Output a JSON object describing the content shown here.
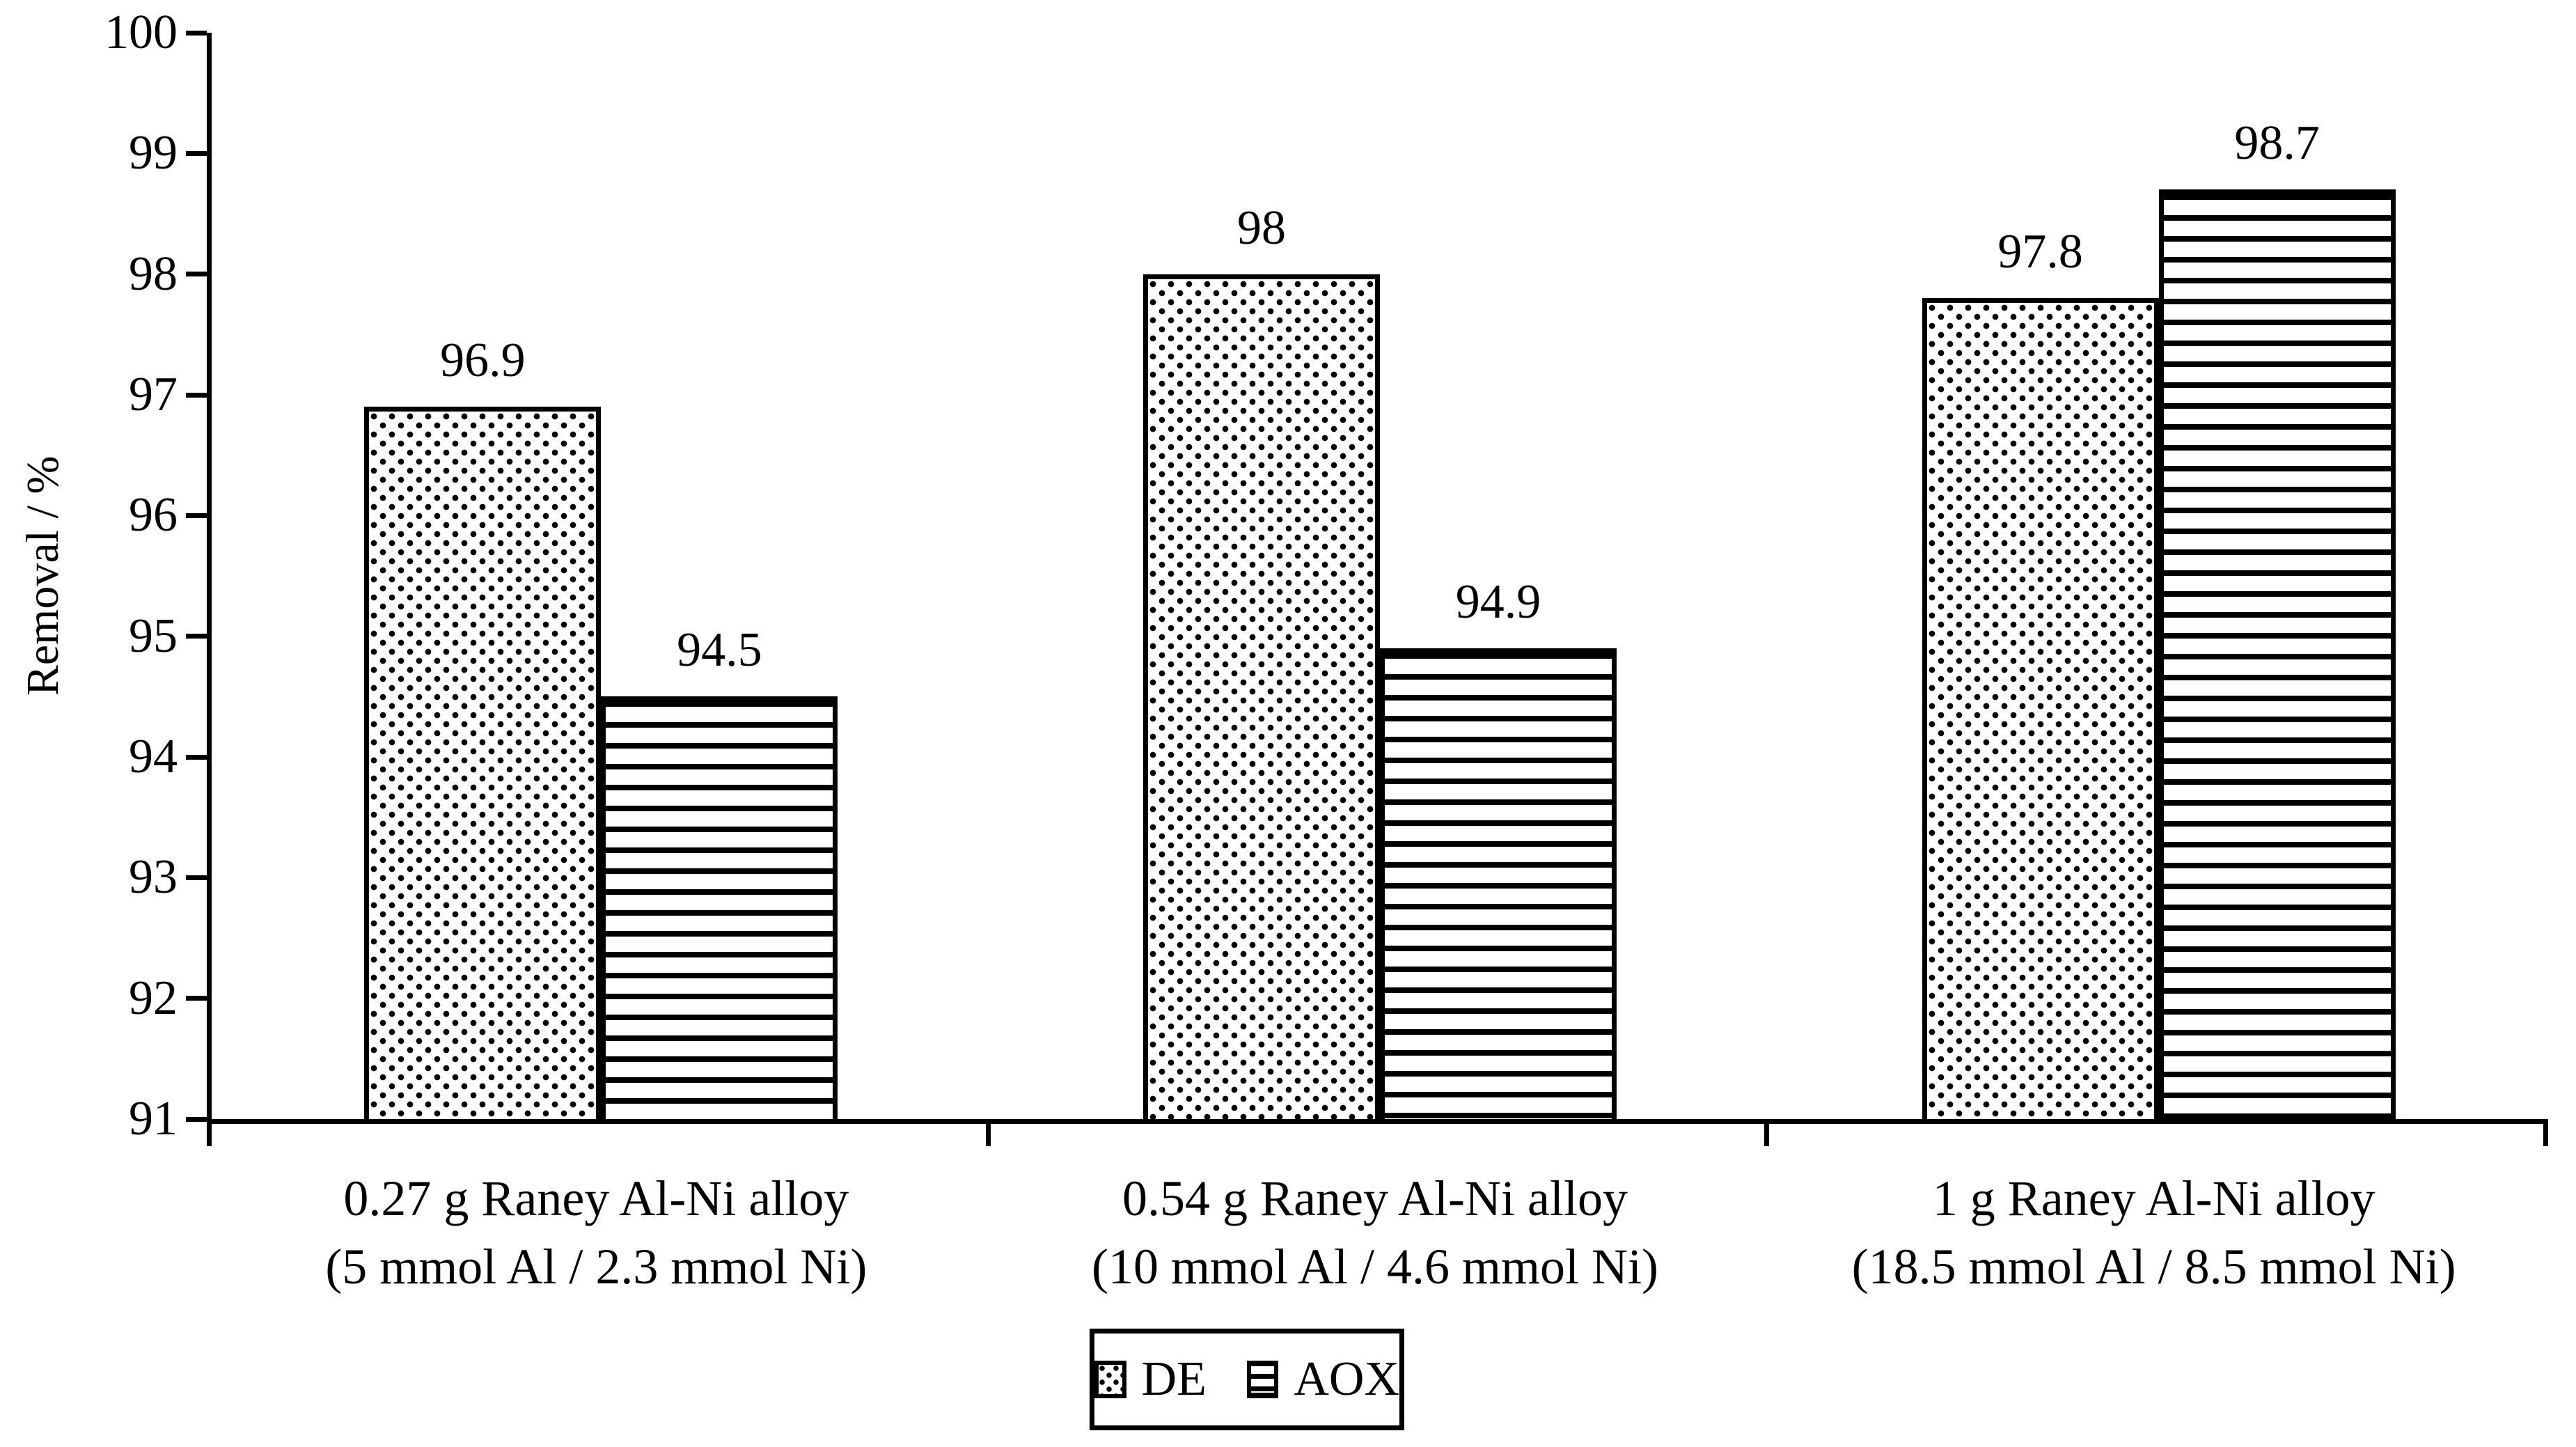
{
  "chart_data": {
    "type": "bar",
    "title": "",
    "ylabel": "Removal / %",
    "ylim": [
      91,
      100
    ],
    "yticks": [
      "100",
      "99",
      "98",
      "97",
      "96",
      "95",
      "94",
      "93",
      "92",
      "91"
    ],
    "grid": false,
    "legend_position": "bottom-center",
    "categories": [
      {
        "line1": "0.27 g Raney Al-Ni alloy",
        "line2": "(5 mmol Al / 2.3 mmol Ni)"
      },
      {
        "line1": "0.54 g Raney Al-Ni alloy",
        "line2": "(10 mmol Al / 4.6 mmol Ni)"
      },
      {
        "line1": "1 g Raney Al-Ni alloy",
        "line2": "(18.5 mmol Al / 8.5 mmol Ni)"
      }
    ],
    "series": [
      {
        "name": "DE",
        "pattern": "dots",
        "values": [
          96.9,
          98.0,
          97.8
        ],
        "labels": [
          "96.9",
          "98",
          "97.8"
        ]
      },
      {
        "name": "AOX",
        "pattern": "hlines",
        "values": [
          94.5,
          94.9,
          98.7
        ],
        "labels": [
          "94.5",
          "94.9",
          "98.7"
        ]
      }
    ]
  }
}
